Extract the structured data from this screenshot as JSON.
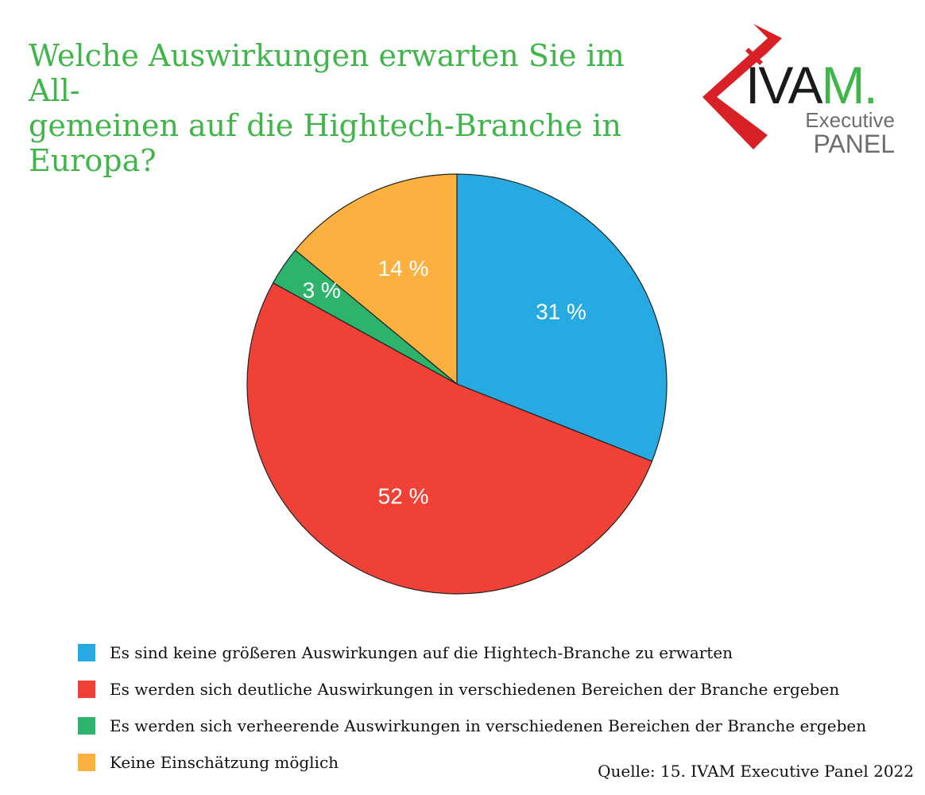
{
  "title": "Welche Auswirkungen erwarten Sie im All-\ngemeinen auf die Hightech-Branche in\nEuropa?",
  "logo": {
    "brand": "IVAM.",
    "line1": "Executive",
    "line2": "PANEL",
    "colors": {
      "red": "#d92027",
      "dark": "#1a1a1a",
      "green": "#3fb54a",
      "gray": "#6d6e71"
    }
  },
  "chart_data": {
    "type": "pie",
    "title": "Welche Auswirkungen erwarten Sie im Allgemeinen auf die Hightech-Branche in Europa?",
    "slices": [
      {
        "name": "Es sind keine größeren Auswirkungen auf die Hightech-Branche zu erwarten",
        "value": 31,
        "label": "31 %",
        "color": "#27aae1"
      },
      {
        "name": "Es werden sich deutliche Auswirkungen in verschiedenen Bereichen der Branche ergeben",
        "value": 52,
        "label": "52 %",
        "color": "#ef4136"
      },
      {
        "name": "Es werden sich verheerende Auswirkungen in verschiedenen Bereichen der Branche ergeben",
        "value": 3,
        "label": "3 %",
        "color": "#2db36b"
      },
      {
        "name": "Keine Einschätzung möglich",
        "value": 14,
        "label": "14 %",
        "color": "#fbb040"
      }
    ],
    "start": "12 o'clock",
    "direction": "clockwise",
    "legend_position": "bottom"
  },
  "source": "Quelle: 15. IVAM Executive Panel 2022"
}
